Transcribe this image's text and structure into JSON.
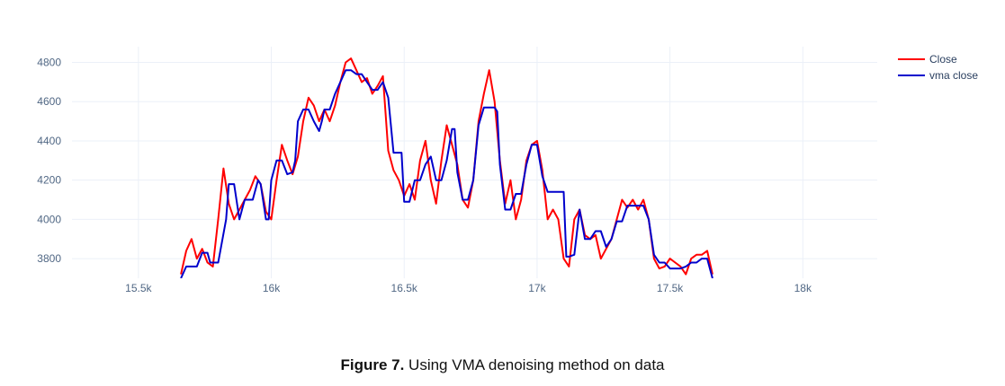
{
  "chart_data": {
    "type": "line",
    "xticks": [
      {
        "value": 15500,
        "label": "15.5k"
      },
      {
        "value": 16000,
        "label": "16k"
      },
      {
        "value": 16500,
        "label": "16.5k"
      },
      {
        "value": 17000,
        "label": "17k"
      },
      {
        "value": 17500,
        "label": "17.5k"
      },
      {
        "value": 18000,
        "label": "18k"
      }
    ],
    "yticks": [
      {
        "value": 3800,
        "label": "3800"
      },
      {
        "value": 4000,
        "label": "4000"
      },
      {
        "value": 4200,
        "label": "4200"
      },
      {
        "value": 4400,
        "label": "4400"
      },
      {
        "value": 4600,
        "label": "4600"
      },
      {
        "value": 4800,
        "label": "4800"
      }
    ],
    "xlim": [
      15250,
      18280
    ],
    "ylim": [
      3700,
      4880
    ],
    "grid": true,
    "legend": "top-right",
    "series": [
      {
        "name": "Close",
        "color": "#ff0000",
        "x": [
          15660,
          15680,
          15700,
          15720,
          15740,
          15760,
          15780,
          15800,
          15820,
          15840,
          15860,
          15880,
          15900,
          15920,
          15940,
          15960,
          15980,
          16000,
          16020,
          16040,
          16060,
          16080,
          16100,
          16120,
          16140,
          16160,
          16180,
          16200,
          16220,
          16240,
          16260,
          16280,
          16300,
          16320,
          16340,
          16360,
          16380,
          16400,
          16420,
          16440,
          16460,
          16480,
          16500,
          16520,
          16540,
          16560,
          16580,
          16600,
          16620,
          16640,
          16660,
          16680,
          16700,
          16720,
          16740,
          16760,
          16780,
          16800,
          16820,
          16840,
          16860,
          16880,
          16900,
          16920,
          16940,
          16960,
          16980,
          17000,
          17020,
          17040,
          17060,
          17080,
          17100,
          17120,
          17140,
          17160,
          17180,
          17200,
          17220,
          17240,
          17260,
          17280,
          17300,
          17320,
          17340,
          17360,
          17380,
          17400,
          17420,
          17440,
          17460,
          17480,
          17500,
          17520,
          17540,
          17560,
          17580,
          17600,
          17620,
          17640,
          17660
        ],
        "values": [
          3720,
          3840,
          3900,
          3800,
          3850,
          3780,
          3760,
          4000,
          4260,
          4080,
          4000,
          4050,
          4100,
          4150,
          4220,
          4180,
          4040,
          4000,
          4200,
          4380,
          4300,
          4230,
          4320,
          4500,
          4620,
          4580,
          4500,
          4560,
          4500,
          4580,
          4700,
          4800,
          4820,
          4760,
          4700,
          4720,
          4640,
          4680,
          4730,
          4350,
          4250,
          4200,
          4120,
          4180,
          4100,
          4300,
          4400,
          4200,
          4080,
          4300,
          4480,
          4380,
          4280,
          4100,
          4060,
          4200,
          4500,
          4640,
          4760,
          4600,
          4300,
          4080,
          4200,
          4000,
          4100,
          4300,
          4380,
          4400,
          4250,
          4000,
          4050,
          4000,
          3800,
          3760,
          4000,
          4050,
          3920,
          3900,
          3920,
          3800,
          3850,
          3900,
          4000,
          4100,
          4060,
          4100,
          4050,
          4100,
          4000,
          3800,
          3750,
          3760,
          3800,
          3780,
          3760,
          3720,
          3800,
          3820,
          3820,
          3840,
          3720
        ]
      },
      {
        "name": "vma close",
        "color": "#0000cc",
        "x": [
          15660,
          15680,
          15720,
          15740,
          15760,
          15770,
          15800,
          15830,
          15840,
          15860,
          15880,
          15890,
          15900,
          15930,
          15950,
          15960,
          15980,
          15990,
          16000,
          16020,
          16040,
          16060,
          16080,
          16090,
          16100,
          16120,
          16140,
          16160,
          16180,
          16190,
          16200,
          16220,
          16240,
          16260,
          16280,
          16300,
          16320,
          16340,
          16360,
          16380,
          16400,
          16420,
          16440,
          16460,
          16490,
          16500,
          16520,
          16540,
          16560,
          16580,
          16600,
          16620,
          16640,
          16660,
          16680,
          16690,
          16700,
          16720,
          16740,
          16760,
          16780,
          16800,
          16820,
          16840,
          16850,
          16860,
          16880,
          16900,
          16920,
          16940,
          16960,
          16980,
          17000,
          17020,
          17040,
          17060,
          17080,
          17100,
          17110,
          17120,
          17140,
          17160,
          17180,
          17200,
          17220,
          17240,
          17260,
          17280,
          17300,
          17320,
          17340,
          17360,
          17380,
          17400,
          17420,
          17440,
          17460,
          17480,
          17500,
          17520,
          17540,
          17560,
          17580,
          17600,
          17620,
          17640,
          17660
        ],
        "values": [
          3700,
          3760,
          3760,
          3830,
          3830,
          3780,
          3780,
          4000,
          4180,
          4180,
          4000,
          4050,
          4100,
          4100,
          4200,
          4180,
          4000,
          4000,
          4200,
          4300,
          4300,
          4230,
          4240,
          4300,
          4500,
          4560,
          4560,
          4500,
          4450,
          4500,
          4560,
          4560,
          4640,
          4700,
          4760,
          4760,
          4740,
          4740,
          4700,
          4660,
          4660,
          4700,
          4620,
          4340,
          4340,
          4090,
          4090,
          4200,
          4200,
          4280,
          4320,
          4200,
          4200,
          4300,
          4460,
          4460,
          4240,
          4100,
          4100,
          4200,
          4480,
          4570,
          4570,
          4570,
          4550,
          4280,
          4050,
          4050,
          4130,
          4130,
          4280,
          4380,
          4380,
          4220,
          4140,
          4140,
          4140,
          4140,
          3810,
          3810,
          3820,
          4050,
          3900,
          3900,
          3940,
          3940,
          3860,
          3900,
          3990,
          3990,
          4070,
          4070,
          4070,
          4070,
          4000,
          3820,
          3780,
          3780,
          3750,
          3750,
          3750,
          3760,
          3780,
          3780,
          3800,
          3800,
          3700
        ]
      }
    ]
  },
  "caption": {
    "label": "Figure 7.",
    "text": " Using VMA denoising method on data"
  }
}
